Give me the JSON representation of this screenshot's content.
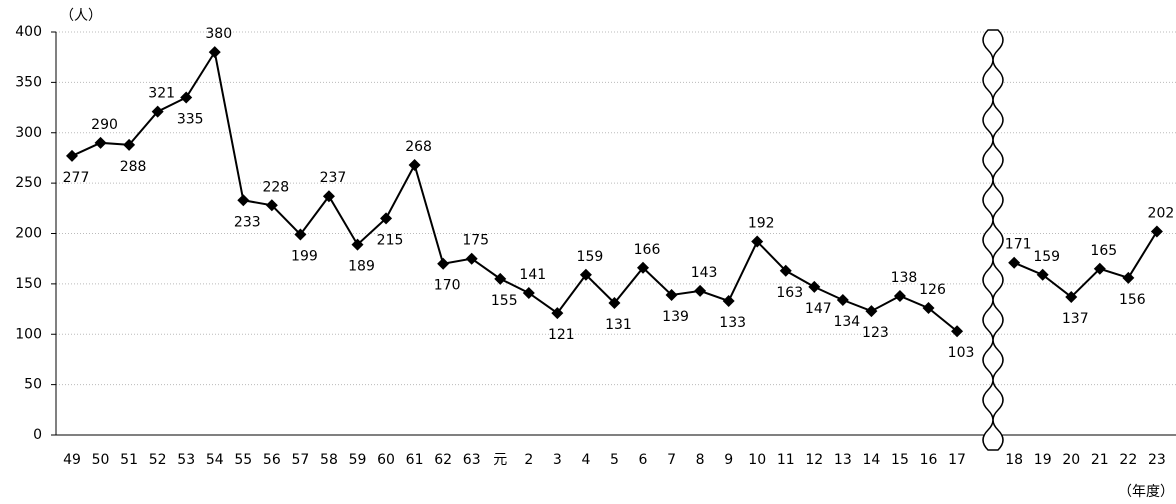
{
  "chart_data": {
    "type": "line",
    "y_label": "（人）",
    "x_label": "（年度）",
    "categories": [
      "49",
      "50",
      "51",
      "52",
      "53",
      "54",
      "55",
      "56",
      "57",
      "58",
      "59",
      "60",
      "61",
      "62",
      "63",
      "元",
      "2",
      "3",
      "4",
      "5",
      "6",
      "7",
      "8",
      "9",
      "10",
      "11",
      "12",
      "13",
      "14",
      "15",
      "16",
      "17",
      null,
      "18",
      "19",
      "20",
      "21",
      "22",
      "23"
    ],
    "values": [
      277,
      290,
      288,
      321,
      335,
      380,
      233,
      228,
      199,
      237,
      189,
      215,
      268,
      170,
      175,
      155,
      141,
      121,
      159,
      131,
      166,
      139,
      143,
      133,
      192,
      163,
      147,
      134,
      123,
      138,
      126,
      103,
      null,
      171,
      159,
      137,
      165,
      156,
      202
    ],
    "color": "#000000",
    "ylim": [
      0,
      400
    ],
    "yticks": [
      0,
      50,
      100,
      150,
      200,
      250,
      300,
      350,
      400
    ],
    "grid": true
  }
}
